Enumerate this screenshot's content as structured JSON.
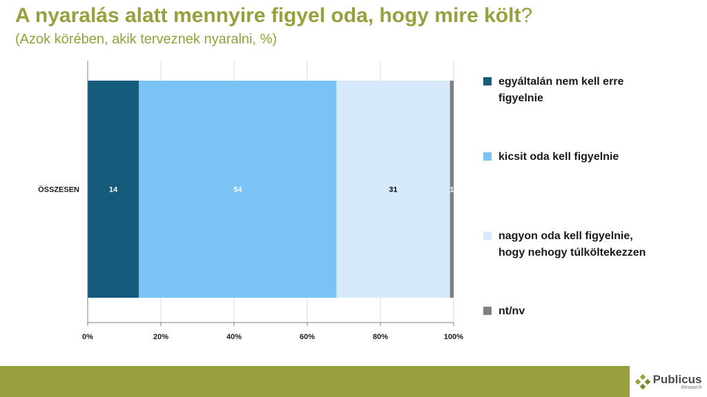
{
  "title": "A nyaralás alatt mennyire figyel oda, hogy mire költ",
  "title_qmark": "?",
  "subtitle": "(Azok körében, akik terveznek nyaralni, %)",
  "logo": {
    "name": "Publicus",
    "sub": "Research",
    "icon": "diamond-logo-icon"
  },
  "colors": {
    "title": "#97a03c",
    "footer": "#97a03c"
  },
  "chart_data": {
    "type": "bar",
    "orientation": "horizontal",
    "stacked": true,
    "categories": [
      "ÖSSZESEN"
    ],
    "series": [
      {
        "name": "egyáltalán nem kell erre figyelnie",
        "values": [
          14
        ],
        "labels": [
          "14"
        ],
        "color": "#165b7b",
        "label_color": "#ffffff"
      },
      {
        "name": "kicsit oda kell figyelnie",
        "values": [
          54
        ],
        "labels": [
          "54"
        ],
        "color": "#7ac3f5",
        "label_color": "#ffffff"
      },
      {
        "name": "nagyon oda kell figyelnie, hogy nehogy túlköltekezzen",
        "values": [
          31
        ],
        "labels": [
          "31"
        ],
        "color": "#d6eafb",
        "label_color": "#000000"
      },
      {
        "name": "nt/nv",
        "values": [
          1
        ],
        "labels": [
          "1"
        ],
        "color": "#808080",
        "label_color": "#ffffff"
      }
    ],
    "xlim": [
      0,
      100
    ],
    "xticks": [
      0,
      20,
      40,
      60,
      80,
      100
    ],
    "xtick_labels": [
      "0%",
      "20%",
      "40%",
      "60%",
      "80%",
      "100%"
    ],
    "grid": true,
    "legend": "right"
  }
}
